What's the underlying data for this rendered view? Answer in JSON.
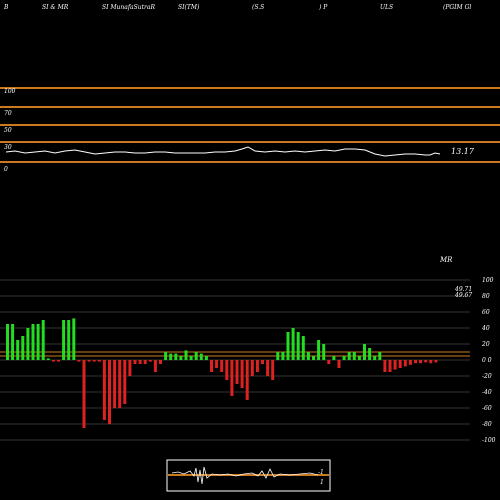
{
  "header": {
    "items": [
      "B",
      "SI & MR",
      "SI MunafaSutraR",
      "SI(TM)",
      "(S.S",
      ") P",
      "ULS",
      "(PGIM Gl"
    ]
  },
  "rsi_panel": {
    "level_labels": [
      "100",
      "70",
      "50",
      "30",
      "0"
    ],
    "current_value": "13.17",
    "line_color": "#ffffff",
    "level_color": "#cd7a1e"
  },
  "mrsi_panel": {
    "title": "MR",
    "value_1": "49.71",
    "value_2": "49.67",
    "axis_labels": [
      "100",
      "80",
      "60",
      "40",
      "20",
      "0 0",
      "-20",
      "-40",
      "-60",
      "-80",
      "-100"
    ],
    "positive_color": "#22dd22",
    "negative_color": "#dd2222"
  },
  "mini_panel": {
    "labels": [
      "-1",
      "1"
    ],
    "level_color": "#cd7a1e"
  },
  "chart_data": {
    "type": "bar",
    "title": "MR",
    "ylim": [
      -100,
      100
    ],
    "values": [
      45,
      45,
      25,
      30,
      40,
      45,
      45,
      50,
      2,
      -2,
      -2,
      50,
      50,
      52,
      -2,
      -85,
      -2,
      -2,
      -2,
      -75,
      -80,
      -60,
      -60,
      -55,
      -20,
      -5,
      -5,
      -5,
      -2,
      -15,
      -5,
      10,
      8,
      8,
      5,
      12,
      5,
      10,
      8,
      5,
      -15,
      -10,
      -15,
      -25,
      -45,
      -30,
      -35,
      -50,
      -20,
      -15,
      -5,
      -20,
      -25,
      10,
      10,
      35,
      40,
      35,
      30,
      10,
      5,
      25,
      20,
      -5,
      5,
      -10,
      5,
      10,
      10,
      5,
      20,
      15,
      5,
      10,
      -15,
      -15,
      -12,
      -10,
      -8,
      -6,
      -4,
      -4,
      -3,
      -4,
      -3
    ]
  }
}
